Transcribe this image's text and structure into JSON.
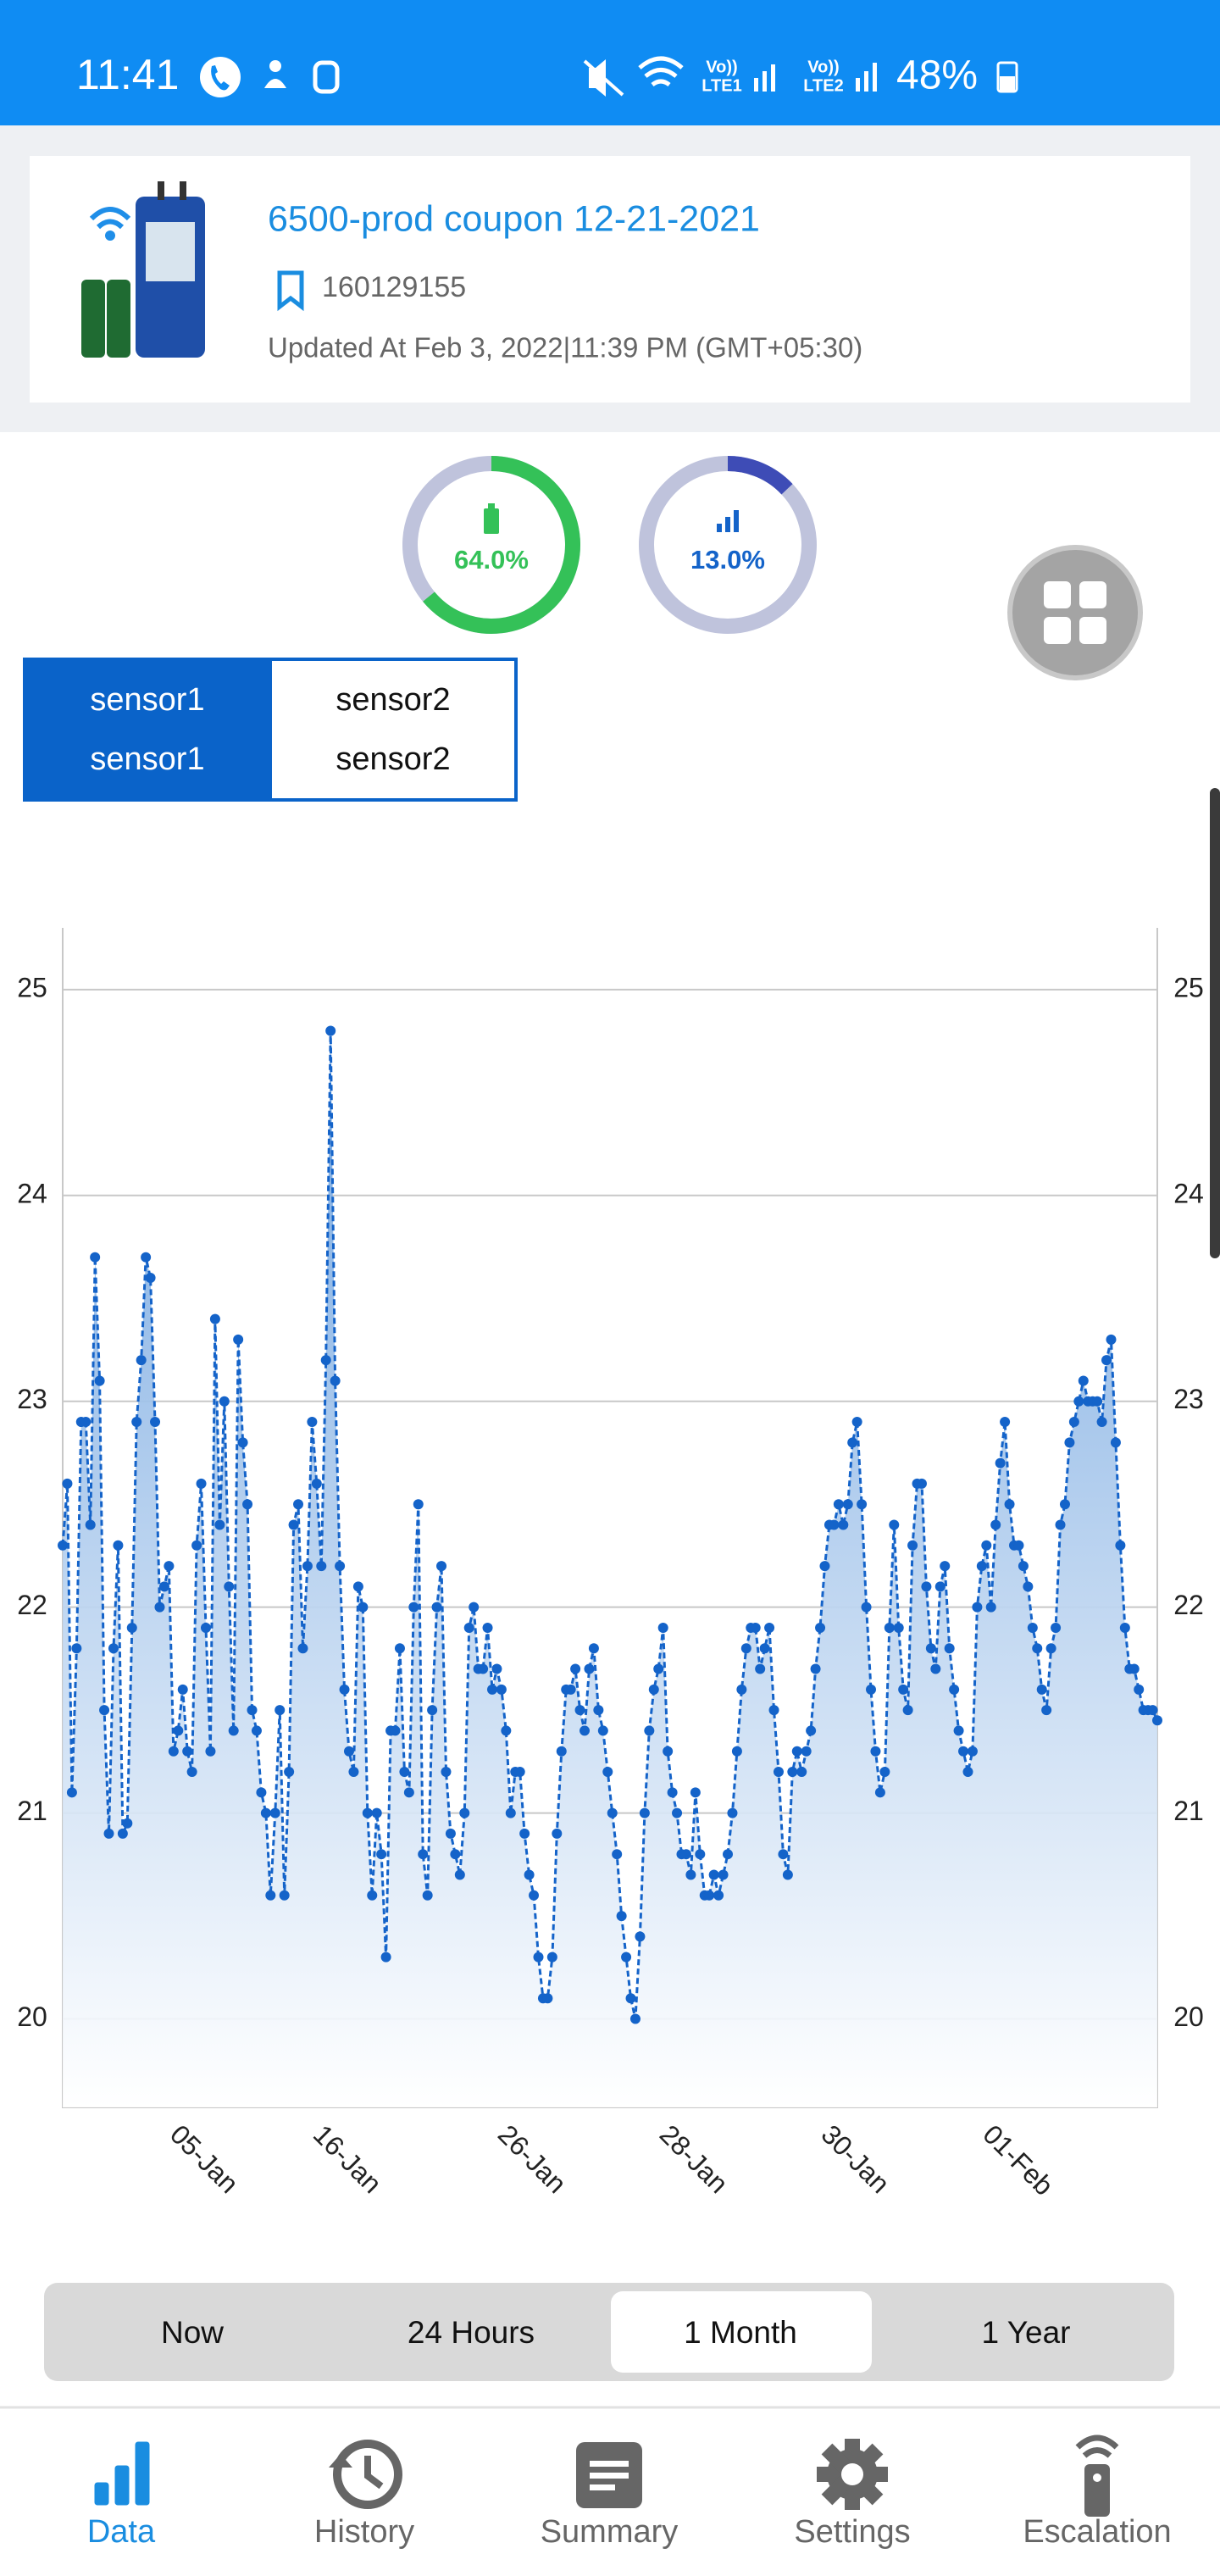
{
  "status_bar": {
    "time": "11:41",
    "battery": "48%",
    "sims": [
      {
        "top": "Vo))",
        "bottom": "LTE1"
      },
      {
        "top": "Vo))",
        "bottom": "LTE2"
      }
    ]
  },
  "device": {
    "name": "6500-prod coupon 12-21-2021",
    "id": "160129155",
    "updated": "Updated At Feb 3, 2022|11:39 PM (GMT+05:30)"
  },
  "gauges": [
    {
      "value": 64.0,
      "label": "64.0%",
      "color": "#34c158"
    },
    {
      "value": 13.0,
      "label": "13.0%",
      "color": "#3e4cb6"
    }
  ],
  "sensor_tabs": [
    {
      "lines": [
        "sensor1",
        "sensor1"
      ],
      "selected": true
    },
    {
      "lines": [
        "sensor2",
        "sensor2"
      ],
      "selected": false
    }
  ],
  "chart_data": {
    "type": "line",
    "categories": [
      null,
      null,
      null,
      null,
      null,
      null,
      null,
      null,
      null,
      null,
      null,
      null,
      null,
      null,
      null,
      null,
      null,
      null,
      null,
      null,
      null,
      null,
      null,
      null,
      "05-Jan",
      null,
      null,
      null,
      null,
      null,
      null,
      null,
      null,
      null,
      null,
      null,
      null,
      null,
      null,
      null,
      null,
      null,
      null,
      null,
      null,
      null,
      null,
      null,
      null,
      null,
      null,
      null,
      null,
      null,
      null,
      "16-Jan",
      null,
      null,
      null,
      null,
      null,
      null,
      null,
      null,
      null,
      null,
      null,
      null,
      null,
      null,
      null,
      null,
      null,
      null,
      null,
      null,
      null,
      null,
      null,
      null,
      null,
      null,
      null,
      null,
      null,
      null,
      null,
      null,
      null,
      null,
      null,
      null,
      null,
      null,
      null,
      "26-Jan",
      null,
      null,
      null,
      null,
      null,
      null,
      null,
      null,
      null,
      null,
      null,
      null,
      null,
      null,
      null,
      null,
      null,
      null,
      null,
      null,
      null,
      null,
      null,
      null,
      null,
      null,
      null,
      null,
      null,
      null,
      null,
      null,
      null,
      null,
      "28-Jan",
      null,
      null,
      null,
      null,
      null,
      null,
      null,
      null,
      null,
      null,
      null,
      null,
      null,
      null,
      null,
      null,
      null,
      null,
      null,
      null,
      null,
      null,
      null,
      null,
      null,
      null,
      null,
      null,
      null,
      null,
      null,
      null,
      null,
      null,
      "30-Jan",
      null,
      null,
      null,
      null,
      null,
      null,
      null,
      null,
      null,
      null,
      null,
      null,
      null,
      null,
      null,
      null,
      null,
      null,
      null,
      null,
      null,
      null,
      null,
      null,
      null,
      null,
      null,
      null,
      null,
      null,
      null,
      null,
      null,
      null,
      "01-Feb",
      null,
      null,
      null,
      null,
      null,
      null,
      null,
      null,
      null,
      null,
      null,
      null,
      null,
      null,
      null,
      null,
      null,
      null,
      null,
      null,
      null,
      null,
      null,
      null,
      null,
      null,
      null,
      null,
      null,
      null,
      null,
      null,
      null,
      null,
      null,
      null,
      null
    ],
    "series": [
      {
        "name": "sensor1",
        "color": "#1463c9",
        "area_color": "#6fa3df",
        "values": [
          22.3,
          22.6,
          21.1,
          21.8,
          22.9,
          22.9,
          22.4,
          23.7,
          23.1,
          21.5,
          20.9,
          21.8,
          22.3,
          20.9,
          20.95,
          21.9,
          22.9,
          23.2,
          23.7,
          23.6,
          22.9,
          22.0,
          22.1,
          22.2,
          21.3,
          21.4,
          21.6,
          21.3,
          21.2,
          22.3,
          22.6,
          21.9,
          21.3,
          23.4,
          22.4,
          23.0,
          22.1,
          21.4,
          23.3,
          22.8,
          22.5,
          21.5,
          21.4,
          21.1,
          21.0,
          20.6,
          21.0,
          21.5,
          20.6,
          21.2,
          22.4,
          22.5,
          21.8,
          22.2,
          22.9,
          22.6,
          22.2,
          23.2,
          24.8,
          23.1,
          22.2,
          21.6,
          21.3,
          21.2,
          22.1,
          22.0,
          21.0,
          20.6,
          21.0,
          20.8,
          20.3,
          21.4,
          21.4,
          21.8,
          21.2,
          21.1,
          22.0,
          22.5,
          20.8,
          20.6,
          21.5,
          22.0,
          22.2,
          21.2,
          20.9,
          20.8,
          20.7,
          21.0,
          21.9,
          22.0,
          21.7,
          21.7,
          21.9,
          21.6,
          21.7,
          21.6,
          21.4,
          21.0,
          21.2,
          21.2,
          20.9,
          20.7,
          20.6,
          20.3,
          20.1,
          20.1,
          20.3,
          20.9,
          21.3,
          21.6,
          21.6,
          21.7,
          21.5,
          21.4,
          21.7,
          21.8,
          21.5,
          21.4,
          21.2,
          21.0,
          20.8,
          20.5,
          20.3,
          20.1,
          20.0,
          20.4,
          21.0,
          21.4,
          21.6,
          21.7,
          21.9,
          21.3,
          21.1,
          21.0,
          20.8,
          20.8,
          20.7,
          21.1,
          20.8,
          20.6,
          20.6,
          20.7,
          20.6,
          20.7,
          20.8,
          21.0,
          21.3,
          21.6,
          21.8,
          21.9,
          21.9,
          21.7,
          21.8,
          21.9,
          21.5,
          21.2,
          20.8,
          20.7,
          21.2,
          21.3,
          21.2,
          21.3,
          21.4,
          21.7,
          21.9,
          22.2,
          22.4,
          22.4,
          22.5,
          22.4,
          22.5,
          22.8,
          22.9,
          22.5,
          22.0,
          21.6,
          21.3,
          21.1,
          21.2,
          21.9,
          22.4,
          21.9,
          21.6,
          21.5,
          22.3,
          22.6,
          22.6,
          22.1,
          21.8,
          21.7,
          22.1,
          22.2,
          21.8,
          21.6,
          21.4,
          21.3,
          21.2,
          21.3,
          22.0,
          22.2,
          22.3,
          22.0,
          22.4,
          22.7,
          22.9,
          22.5,
          22.3,
          22.3,
          22.2,
          22.1,
          21.9,
          21.8,
          21.6,
          21.5,
          21.8,
          21.9,
          22.4,
          22.5,
          22.8,
          22.9,
          23.0,
          23.1,
          23.0,
          23.0,
          23.0,
          22.9,
          23.2,
          23.3,
          22.8,
          22.3,
          21.9,
          21.7,
          21.7,
          21.6,
          21.5,
          21.5,
          21.5,
          21.45
        ]
      }
    ],
    "ylim": [
      19.57,
      25.3
    ],
    "yticks": [
      20,
      21,
      22,
      23,
      24,
      25
    ],
    "y2lim": [
      19.57,
      25.3
    ],
    "y2ticks": [
      20,
      21,
      22,
      23,
      24,
      25
    ],
    "grid": true,
    "dashed": true,
    "markers": true
  },
  "range_tabs": {
    "options": [
      "Now",
      "24 Hours",
      "1 Month",
      "1 Year"
    ],
    "selected": 2
  },
  "nav": {
    "items": [
      "Data",
      "History",
      "Summary",
      "Settings",
      "Escalation"
    ],
    "active": 0
  }
}
